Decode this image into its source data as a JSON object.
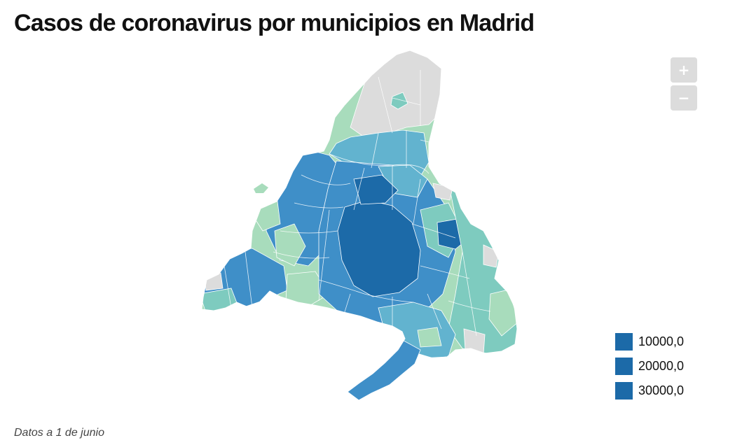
{
  "title": "Casos de coronavirus por municipios en Madrid",
  "zoom": {
    "in_label": "+",
    "out_label": "−"
  },
  "legend": [
    {
      "label": "10000,0",
      "color": "#1c6aa8"
    },
    {
      "label": "20000,0",
      "color": "#1c6aa8"
    },
    {
      "label": "30000,0",
      "color": "#1c6aa8"
    }
  ],
  "note": "Datos a 1 de junio",
  "colors": {
    "no_data": "#dcdcdc",
    "light_green": "#a8dcbc",
    "mint": "#7ecbbf",
    "teal": "#62b3cf",
    "blue": "#3f8fc8",
    "dark_blue": "#1c6aa8",
    "border": "#ffffff"
  }
}
